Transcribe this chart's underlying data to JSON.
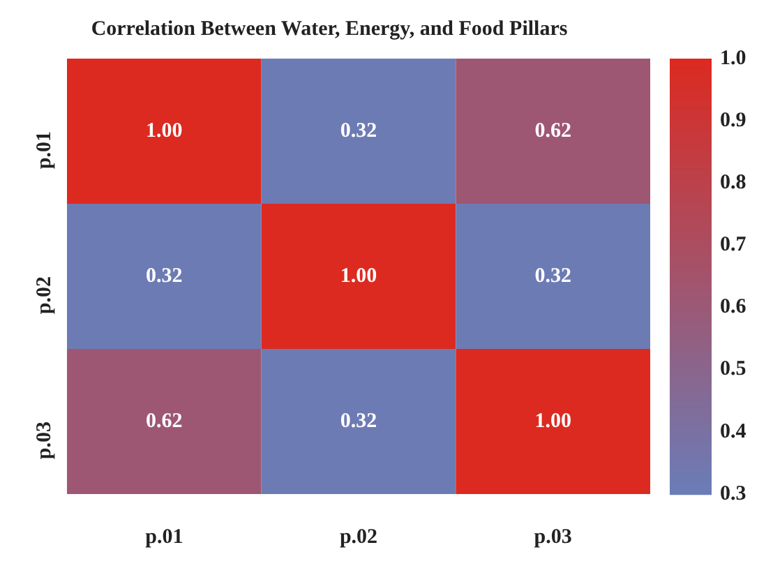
{
  "chart_data": {
    "type": "heatmap",
    "title": "Correlation Between Water, Energy, and Food Pillars",
    "categories": [
      "p.01",
      "p.02",
      "p.03"
    ],
    "y_categories": [
      "p.01",
      "p.02",
      "p.03"
    ],
    "cells": [
      [
        1.0,
        0.32,
        0.62
      ],
      [
        0.32,
        1.0,
        0.32
      ],
      [
        0.62,
        0.32,
        1.0
      ]
    ],
    "cell_labels": [
      [
        "1.00",
        "0.32",
        "0.62"
      ],
      [
        "0.32",
        "1.00",
        "0.32"
      ],
      [
        "0.62",
        "0.32",
        "1.00"
      ]
    ],
    "colors": [
      "#6a7db8",
      "#dc2a20"
    ],
    "clim": [
      0.3,
      1.0
    ],
    "cticks": [
      0.3,
      0.4,
      0.5,
      0.6,
      0.7,
      0.8,
      0.9,
      {
        "value": 1,
        "label": "1.0"
      }
    ]
  }
}
